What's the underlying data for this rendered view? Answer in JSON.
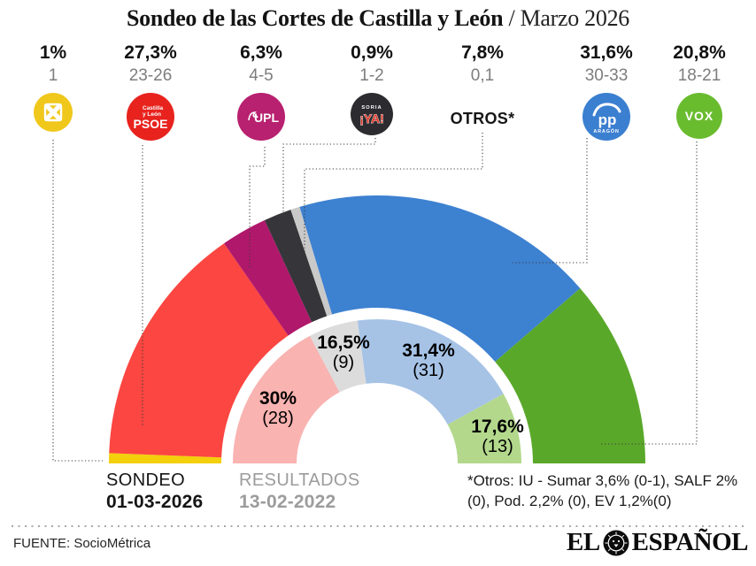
{
  "title": {
    "main": "Sondeo de las Cortes de Castilla y León",
    "suffix": "/ Marzo 2026"
  },
  "parties": [
    {
      "id": "xav",
      "pct": "1%",
      "seats": "1",
      "icon_color": "#f0c71b"
    },
    {
      "id": "psoe",
      "pct": "27,3%",
      "seats": "23-26",
      "icon_color": "#e8231e",
      "icon_region_line1": "Castilla",
      "icon_region_line2": "y León",
      "icon_label": "PSOE"
    },
    {
      "id": "upl",
      "pct": "6,3%",
      "seats": "4-5",
      "icon_color": "#b8216f",
      "icon_label": "UPL"
    },
    {
      "id": "soria-ya",
      "pct": "0,9%",
      "seats": "1-2",
      "icon_color": "#2c2c30",
      "icon_top": "SORIA",
      "icon_label": "¡YA!",
      "icon_label_color": "#e0382c"
    },
    {
      "id": "otros",
      "pct": "7,8%",
      "seats": "0,1",
      "label": "OTROS*"
    },
    {
      "id": "pp",
      "pct": "31,6%",
      "seats": "30-33",
      "icon_color": "#3b7fd0",
      "icon_label": "pp",
      "icon_sub": "ARAGÓN"
    },
    {
      "id": "vox",
      "pct": "20,8%",
      "seats": "18-21",
      "icon_color": "#6abc2f",
      "icon_label": "VOX"
    }
  ],
  "chart_data": {
    "type": "pie",
    "variant": "double-ring semicircle hemicycle (poll vs last election)",
    "title": "Sondeo de las Cortes de Castilla y León / Marzo 2026",
    "legend_position": "bottom-left",
    "outer_ring": {
      "name": "SONDEO 01-03-2026",
      "segments": [
        {
          "party": "XAV",
          "pct": 1.0,
          "seats": "1",
          "color": "#f3cf0c",
          "angle_deg": 2.2
        },
        {
          "party": "PSOE",
          "pct": 27.3,
          "seats": "23-26",
          "color": "#fb4641",
          "angle_deg": 53.0
        },
        {
          "party": "UPL",
          "pct": 6.3,
          "seats": "4-5",
          "color": "#b0186b",
          "angle_deg": 10.0
        },
        {
          "party": "Soria ¡YA!",
          "pct": 0.9,
          "seats": "1-2",
          "color": "#35353a",
          "angle_deg": 6.0
        },
        {
          "party": "Otros",
          "pct": 7.8,
          "seats": "0,1",
          "color": "#c9c9c9",
          "angle_deg": 2.0
        },
        {
          "party": "PP",
          "pct": 31.6,
          "seats": "30-33",
          "color": "#3d81d1",
          "angle_deg": 66.0
        },
        {
          "party": "VOX",
          "pct": 20.8,
          "seats": "18-21",
          "color": "#5aa82a",
          "angle_deg": 40.8
        }
      ]
    },
    "inner_ring": {
      "name": "RESULTADOS 13-02-2022",
      "segments": [
        {
          "party": "PSOE",
          "pct": 30.0,
          "seats": 28,
          "pct_label": "30%",
          "seats_label": "(28)",
          "color": "#f9b3b1",
          "angle_deg": 62.2
        },
        {
          "party": "Otros",
          "pct": 16.5,
          "seats": 9,
          "pct_label": "16,5%",
          "seats_label": "(9)",
          "color": "#dcdcdc",
          "angle_deg": 20.0
        },
        {
          "party": "PP",
          "pct": 31.4,
          "seats": 31,
          "pct_label": "31,4%",
          "seats_label": "(31)",
          "color": "#a6c3e6",
          "angle_deg": 68.9
        },
        {
          "party": "VOX",
          "pct": 17.6,
          "seats": 13,
          "pct_label": "17,6%",
          "seats_label": "(13)",
          "color": "#b3d88c",
          "angle_deg": 28.9
        }
      ]
    }
  },
  "legend": {
    "sondeo_label": "SONDEO",
    "sondeo_date": "01-03-2026",
    "resultados_label": "RESULTADOS",
    "resultados_date": "13-02-2022"
  },
  "footnote": {
    "line1": "*Otros: IU - Sumar 3,6% (0-1), SALF 2%",
    "line2": "(0), Pod. 2,2% (0), EV 1,2%(0)"
  },
  "source": "FUENTE: SocioMétrica",
  "brand": {
    "left": "EL",
    "right": "ESPAÑOL"
  }
}
